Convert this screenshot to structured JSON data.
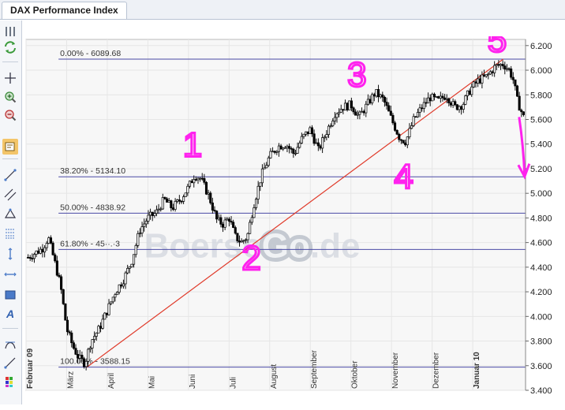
{
  "window": {
    "tab_title": "DAX Performance Index"
  },
  "toolbar": {
    "tools": [
      {
        "icon": "grip-icon"
      },
      {
        "icon": "refresh-icon"
      },
      {
        "icon": "crosshair-icon"
      },
      {
        "icon": "zoom-in-icon"
      },
      {
        "icon": "zoom-out-icon"
      },
      {
        "icon": "annotation-icon",
        "active": true
      },
      {
        "icon": "line-tool-icon"
      },
      {
        "icon": "channel-tool-icon"
      },
      {
        "icon": "triangle-tool-icon"
      },
      {
        "icon": "fibonacci-icon"
      },
      {
        "icon": "vertical-line-icon"
      },
      {
        "icon": "horizontal-line-icon"
      },
      {
        "icon": "rectangle-icon"
      },
      {
        "icon": "text-tool-icon"
      },
      {
        "icon": "arc-tool-icon"
      },
      {
        "icon": "ray-tool-icon"
      },
      {
        "icon": "palette-icon"
      }
    ]
  },
  "watermark": {
    "part1": "Boerse",
    "part2": "Go",
    "part3": ".de"
  },
  "colors": {
    "up": "#ffffff",
    "down": "#000000",
    "wick": "#111111",
    "fib_line": "#4a4aa6",
    "trend_line": "#e03a2a",
    "annotation": "#ff22ee",
    "grid": "#e6e6e6",
    "plot_bg": "#f7f7f7"
  },
  "chart_data": {
    "type": "candlestick",
    "title": "DAX Performance Index",
    "x_months": [
      {
        "label": "Februar 09",
        "bold": true
      },
      {
        "label": "März"
      },
      {
        "label": "April"
      },
      {
        "label": "Mai"
      },
      {
        "label": "Juni"
      },
      {
        "label": "Juli"
      },
      {
        "label": "August"
      },
      {
        "label": "September"
      },
      {
        "label": "Oktober"
      },
      {
        "label": "November"
      },
      {
        "label": "Dezember"
      },
      {
        "label": "Januar 10",
        "bold": true
      }
    ],
    "x_month_positions": [
      0.5,
      1.5,
      2.5,
      3.5,
      4.5,
      5.5,
      6.5,
      7.5,
      8.5,
      9.5,
      10.5,
      11.5
    ],
    "xlim": [
      0,
      12.3
    ],
    "y_ticks": [
      "6.200",
      "6.000",
      "5.800",
      "5.600",
      "5.400",
      "5.200",
      "5.000",
      "4.800",
      "4.600",
      "4.400",
      "4.200",
      "4.000",
      "3.800",
      "3.600",
      "3.400"
    ],
    "y_tick_values": [
      6200,
      6000,
      5800,
      5600,
      5400,
      5200,
      5000,
      4800,
      4600,
      4400,
      4200,
      4000,
      3800,
      3600,
      3400
    ],
    "ylim": [
      3400,
      6250
    ],
    "price_anchors": [
      [
        0.05,
        4480
      ],
      [
        0.4,
        4550
      ],
      [
        0.55,
        4640
      ],
      [
        0.7,
        4450
      ],
      [
        0.85,
        4250
      ],
      [
        1.0,
        3900
      ],
      [
        1.15,
        3760
      ],
      [
        1.3,
        3660
      ],
      [
        1.45,
        3620
      ],
      [
        1.6,
        3800
      ],
      [
        1.8,
        3900
      ],
      [
        2.0,
        4050
      ],
      [
        2.2,
        4200
      ],
      [
        2.4,
        4300
      ],
      [
        2.6,
        4450
      ],
      [
        2.8,
        4700
      ],
      [
        3.0,
        4800
      ],
      [
        3.2,
        4840
      ],
      [
        3.4,
        4950
      ],
      [
        3.6,
        4880
      ],
      [
        3.8,
        4950
      ],
      [
        4.0,
        5050
      ],
      [
        4.15,
        5150
      ],
      [
        4.3,
        5120
      ],
      [
        4.5,
        4980
      ],
      [
        4.7,
        4780
      ],
      [
        4.85,
        4750
      ],
      [
        5.0,
        4800
      ],
      [
        5.15,
        4650
      ],
      [
        5.3,
        4600
      ],
      [
        5.45,
        4650
      ],
      [
        5.6,
        4900
      ],
      [
        5.8,
        5150
      ],
      [
        6.0,
        5300
      ],
      [
        6.2,
        5380
      ],
      [
        6.4,
        5400
      ],
      [
        6.6,
        5320
      ],
      [
        6.8,
        5450
      ],
      [
        7.0,
        5520
      ],
      [
        7.2,
        5350
      ],
      [
        7.4,
        5500
      ],
      [
        7.6,
        5650
      ],
      [
        7.8,
        5700
      ],
      [
        8.0,
        5720
      ],
      [
        8.2,
        5620
      ],
      [
        8.4,
        5720
      ],
      [
        8.6,
        5820
      ],
      [
        8.8,
        5760
      ],
      [
        9.0,
        5600
      ],
      [
        9.2,
        5450
      ],
      [
        9.35,
        5420
      ],
      [
        9.55,
        5600
      ],
      [
        9.75,
        5700
      ],
      [
        9.95,
        5780
      ],
      [
        10.15,
        5750
      ],
      [
        10.35,
        5800
      ],
      [
        10.55,
        5700
      ],
      [
        10.75,
        5720
      ],
      [
        10.95,
        5850
      ],
      [
        11.15,
        5920
      ],
      [
        11.35,
        5950
      ],
      [
        11.55,
        6030
      ],
      [
        11.75,
        6050
      ],
      [
        11.9,
        6000
      ],
      [
        12.0,
        5920
      ],
      [
        12.1,
        5750
      ],
      [
        12.25,
        5620
      ]
    ],
    "fibonacci": [
      {
        "label": "0.00% - 6089.68",
        "value": 6089.68
      },
      {
        "label": "38.20% - 5134.10",
        "value": 5134.1
      },
      {
        "label": "50.00% - 4838.92",
        "value": 4838.92
      },
      {
        "label": "61.80% - 4543.73",
        "value": 4543.73,
        "shown_label": "61.80% - 45··.·3"
      },
      {
        "label": "100.00% - 3588.15",
        "value": 3588.15
      }
    ],
    "trendline": [
      [
        1.5,
        3588.15
      ],
      [
        11.75,
        6089.68
      ]
    ],
    "annotations": [
      {
        "text": "1",
        "x": 4.1,
        "y": 5300
      },
      {
        "text": "2",
        "x": 5.55,
        "y": 4380
      },
      {
        "text": "3",
        "x": 8.15,
        "y": 5870
      },
      {
        "text": "4",
        "x": 9.3,
        "y": 5040
      },
      {
        "text": "5",
        "x": 11.6,
        "y": 6150
      }
    ]
  }
}
